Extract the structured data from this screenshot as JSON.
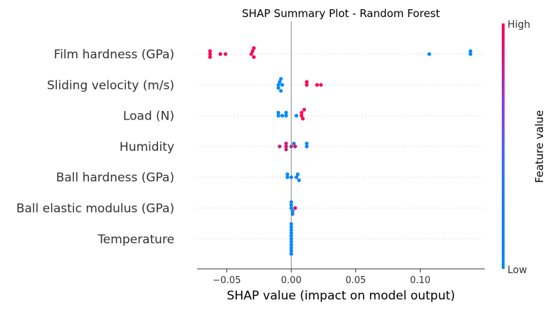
{
  "chart_data": {
    "type": "scatter",
    "title": "SHAP Summary Plot - Random Forest",
    "xlabel": "SHAP value (impact on model output)",
    "ylabel": "",
    "xlim": [
      -0.073,
      0.15
    ],
    "xticks": [
      -0.05,
      0.0,
      0.05,
      0.1
    ],
    "xtick_labels": [
      "−0.05",
      "0.00",
      "0.05",
      "0.10"
    ],
    "grid": false,
    "colorbar": {
      "label": "Feature value",
      "high_label": "High",
      "low_label": "Low",
      "low_color": "#008afb",
      "high_color": "#ff0052"
    },
    "features": [
      {
        "name": "Film hardness (GPa)",
        "points": [
          {
            "x": -0.063,
            "v": 1.0
          },
          {
            "x": -0.063,
            "v": 1.0
          },
          {
            "x": -0.063,
            "v": 1.0
          },
          {
            "x": -0.055,
            "v": 0.9
          },
          {
            "x": -0.051,
            "v": 0.9
          },
          {
            "x": -0.031,
            "v": 0.95
          },
          {
            "x": -0.03,
            "v": 0.95
          },
          {
            "x": -0.029,
            "v": 0.95
          },
          {
            "x": -0.029,
            "v": 0.95
          },
          {
            "x": 0.107,
            "v": 0.0
          },
          {
            "x": 0.139,
            "v": 0.0
          },
          {
            "x": 0.139,
            "v": 0.0
          }
        ]
      },
      {
        "name": "Sliding velocity (m/s)",
        "points": [
          {
            "x": -0.01,
            "v": 0.0
          },
          {
            "x": -0.009,
            "v": 0.0
          },
          {
            "x": -0.01,
            "v": 0.0
          },
          {
            "x": -0.008,
            "v": 0.0
          },
          {
            "x": -0.007,
            "v": 0.0
          },
          {
            "x": -0.008,
            "v": 0.0
          },
          {
            "x": 0.012,
            "v": 1.0
          },
          {
            "x": 0.012,
            "v": 1.0
          },
          {
            "x": 0.02,
            "v": 1.0
          },
          {
            "x": 0.023,
            "v": 1.0
          }
        ]
      },
      {
        "name": "Load (N)",
        "points": [
          {
            "x": -0.01,
            "v": 0.0
          },
          {
            "x": -0.01,
            "v": 0.0
          },
          {
            "x": -0.007,
            "v": 0.0
          },
          {
            "x": -0.004,
            "v": 0.0
          },
          {
            "x": -0.004,
            "v": 0.0
          },
          {
            "x": 0.004,
            "v": 0.0
          },
          {
            "x": 0.008,
            "v": 1.0
          },
          {
            "x": 0.008,
            "v": 1.0
          },
          {
            "x": 0.009,
            "v": 1.0
          },
          {
            "x": 0.01,
            "v": 1.0
          }
        ]
      },
      {
        "name": "Humidity",
        "points": [
          {
            "x": -0.009,
            "v": 0.75
          },
          {
            "x": -0.004,
            "v": 0.85
          },
          {
            "x": -0.004,
            "v": 0.8
          },
          {
            "x": -0.004,
            "v": 0.7
          },
          {
            "x": 0.0,
            "v": 0.5
          },
          {
            "x": 0.002,
            "v": 0.15
          },
          {
            "x": 0.003,
            "v": 0.9
          },
          {
            "x": 0.012,
            "v": 0.0
          },
          {
            "x": 0.012,
            "v": 0.0
          }
        ]
      },
      {
        "name": "Ball hardness (GPa)",
        "points": [
          {
            "x": -0.003,
            "v": 0.0
          },
          {
            "x": -0.003,
            "v": 0.0
          },
          {
            "x": 0.0,
            "v": 0.05
          },
          {
            "x": 0.004,
            "v": 0.1
          },
          {
            "x": 0.005,
            "v": 0.0
          },
          {
            "x": 0.006,
            "v": 0.0
          }
        ]
      },
      {
        "name": "Ball elastic modulus (GPa)",
        "points": [
          {
            "x": 0.0,
            "v": 0.0
          },
          {
            "x": 0.0,
            "v": 0.0
          },
          {
            "x": 0.001,
            "v": 0.0
          },
          {
            "x": 0.0,
            "v": 0.05
          },
          {
            "x": 0.001,
            "v": 0.05
          },
          {
            "x": 0.003,
            "v": 0.95
          }
        ]
      },
      {
        "name": "Temperature",
        "points": [
          {
            "x": 0.0,
            "v": 0.0
          },
          {
            "x": 0.0,
            "v": 0.0
          },
          {
            "x": 0.0,
            "v": 0.0
          },
          {
            "x": 0.0,
            "v": 0.0
          },
          {
            "x": 0.0,
            "v": 0.0
          },
          {
            "x": 0.0,
            "v": 0.0
          },
          {
            "x": 0.0,
            "v": 0.0
          },
          {
            "x": 0.0,
            "v": 0.0
          },
          {
            "x": 0.0,
            "v": 0.0
          },
          {
            "x": 0.0,
            "v": 0.0
          },
          {
            "x": 0.0,
            "v": 0.0
          },
          {
            "x": 0.0,
            "v": 0.0
          }
        ]
      }
    ]
  }
}
